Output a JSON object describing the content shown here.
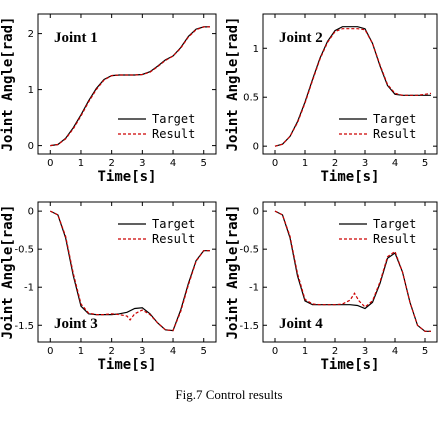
{
  "caption": "Fig.7 Control results",
  "chart_data": [
    {
      "type": "line",
      "title": "Joint 1",
      "xlabel": "Time[s]",
      "ylabel": "Joint Angle[rad]",
      "xlim": [
        -0.4,
        5.4
      ],
      "ylim": [
        -0.15,
        2.35
      ],
      "xticks": [
        0,
        1,
        2,
        3,
        4,
        5
      ],
      "yticks": [
        0,
        1,
        2
      ],
      "legend_position": "bottom-right",
      "series": [
        {
          "name": "Target",
          "color": "#000000",
          "style": "solid",
          "x": [
            0,
            0.25,
            0.5,
            0.75,
            1.0,
            1.25,
            1.5,
            1.75,
            2.0,
            2.25,
            2.5,
            2.75,
            3.0,
            3.25,
            3.5,
            3.75,
            4.0,
            4.25,
            4.5,
            4.75,
            5.0,
            5.2
          ],
          "y": [
            0,
            0.02,
            0.13,
            0.32,
            0.55,
            0.8,
            1.02,
            1.18,
            1.25,
            1.26,
            1.26,
            1.26,
            1.27,
            1.32,
            1.42,
            1.53,
            1.6,
            1.75,
            1.95,
            2.08,
            2.12,
            2.12
          ]
        },
        {
          "name": "Result",
          "color": "#cc0000",
          "style": "dashed",
          "x": [
            0,
            0.25,
            0.5,
            0.75,
            1.0,
            1.25,
            1.5,
            1.75,
            2.0,
            2.25,
            2.5,
            2.75,
            3.0,
            3.25,
            3.5,
            3.75,
            4.0,
            4.25,
            4.5,
            4.75,
            5.0,
            5.2
          ],
          "y": [
            0,
            0.02,
            0.12,
            0.3,
            0.53,
            0.78,
            1.0,
            1.17,
            1.25,
            1.26,
            1.26,
            1.26,
            1.27,
            1.31,
            1.41,
            1.52,
            1.6,
            1.74,
            1.94,
            2.07,
            2.12,
            2.12
          ]
        }
      ]
    },
    {
      "type": "line",
      "title": "Joint 2",
      "xlabel": "Time[s]",
      "ylabel": "Joint Angle[rad]",
      "xlim": [
        -0.4,
        5.4
      ],
      "ylim": [
        -0.08,
        1.35
      ],
      "xticks": [
        0,
        1,
        2,
        3,
        4,
        5
      ],
      "yticks": [
        0,
        0.5,
        1
      ],
      "legend_position": "bottom-right",
      "series": [
        {
          "name": "Target",
          "color": "#000000",
          "style": "solid",
          "x": [
            0,
            0.25,
            0.5,
            0.75,
            1.0,
            1.25,
            1.5,
            1.75,
            2.0,
            2.25,
            2.5,
            2.75,
            3.0,
            3.25,
            3.5,
            3.75,
            4.0,
            4.25,
            4.5,
            4.75,
            5.0,
            5.2
          ],
          "y": [
            0,
            0.02,
            0.1,
            0.25,
            0.45,
            0.68,
            0.9,
            1.07,
            1.18,
            1.22,
            1.22,
            1.22,
            1.2,
            1.05,
            0.82,
            0.62,
            0.53,
            0.52,
            0.52,
            0.52,
            0.52,
            0.52
          ]
        },
        {
          "name": "Result",
          "color": "#cc0000",
          "style": "dashed",
          "x": [
            0,
            0.25,
            0.5,
            0.75,
            1.0,
            1.25,
            1.5,
            1.75,
            2.0,
            2.25,
            2.5,
            2.75,
            3.0,
            3.25,
            3.5,
            3.75,
            4.0,
            4.25,
            4.5,
            4.75,
            5.0,
            5.2
          ],
          "y": [
            0,
            0.02,
            0.1,
            0.24,
            0.44,
            0.67,
            0.89,
            1.06,
            1.17,
            1.2,
            1.2,
            1.2,
            1.19,
            1.05,
            0.83,
            0.63,
            0.54,
            0.52,
            0.52,
            0.52,
            0.53,
            0.54
          ]
        }
      ]
    },
    {
      "type": "line",
      "title": "Joint 3",
      "xlabel": "Time[s]",
      "ylabel": "Joint Angle[rad]",
      "xlim": [
        -0.4,
        5.4
      ],
      "ylim": [
        -1.72,
        0.12
      ],
      "xticks": [
        0,
        1,
        2,
        3,
        4,
        5
      ],
      "yticks": [
        0,
        -0.5,
        -1,
        -1.5
      ],
      "legend_position": "top-right",
      "series": [
        {
          "name": "Target",
          "color": "#000000",
          "style": "solid",
          "x": [
            0,
            0.25,
            0.5,
            0.75,
            1.0,
            1.25,
            1.5,
            1.75,
            2.0,
            2.25,
            2.5,
            2.75,
            3.0,
            3.25,
            3.5,
            3.75,
            4.0,
            4.25,
            4.5,
            4.75,
            5.0,
            5.2
          ],
          "y": [
            0,
            -0.05,
            -0.35,
            -0.85,
            -1.25,
            -1.35,
            -1.36,
            -1.36,
            -1.36,
            -1.35,
            -1.33,
            -1.28,
            -1.27,
            -1.35,
            -1.47,
            -1.56,
            -1.57,
            -1.3,
            -0.95,
            -0.65,
            -0.52,
            -0.52
          ]
        },
        {
          "name": "Result",
          "color": "#cc0000",
          "style": "dashed",
          "x": [
            0,
            0.25,
            0.5,
            0.75,
            1.0,
            1.25,
            1.5,
            1.75,
            2.0,
            2.25,
            2.5,
            2.6,
            2.75,
            3.0,
            3.25,
            3.5,
            3.75,
            4.0,
            4.25,
            4.5,
            4.75,
            5.0,
            5.2
          ],
          "y": [
            0,
            -0.05,
            -0.33,
            -0.82,
            -1.22,
            -1.34,
            -1.36,
            -1.36,
            -1.35,
            -1.36,
            -1.38,
            -1.43,
            -1.35,
            -1.3,
            -1.36,
            -1.47,
            -1.56,
            -1.57,
            -1.32,
            -0.97,
            -0.66,
            -0.52,
            -0.52
          ]
        }
      ]
    },
    {
      "type": "line",
      "title": "Joint 4",
      "xlabel": "Time[s]",
      "ylabel": "Joint Angle[rad]",
      "xlim": [
        -0.4,
        5.4
      ],
      "ylim": [
        -1.72,
        0.12
      ],
      "xticks": [
        0,
        1,
        2,
        3,
        4,
        5
      ],
      "yticks": [
        0,
        -0.5,
        -1,
        -1.5
      ],
      "legend_position": "top-right",
      "series": [
        {
          "name": "Target",
          "color": "#000000",
          "style": "solid",
          "x": [
            0,
            0.25,
            0.5,
            0.75,
            1.0,
            1.25,
            1.5,
            1.75,
            2.0,
            2.25,
            2.5,
            2.75,
            3.0,
            3.25,
            3.5,
            3.75,
            4.0,
            4.25,
            4.5,
            4.75,
            5.0,
            5.2
          ],
          "y": [
            0,
            -0.05,
            -0.35,
            -0.85,
            -1.18,
            -1.23,
            -1.23,
            -1.23,
            -1.23,
            -1.23,
            -1.23,
            -1.24,
            -1.28,
            -1.2,
            -0.95,
            -0.62,
            -0.55,
            -0.8,
            -1.2,
            -1.5,
            -1.58,
            -1.58
          ]
        },
        {
          "name": "Result",
          "color": "#cc0000",
          "style": "dashed",
          "x": [
            0,
            0.25,
            0.5,
            0.75,
            1.0,
            1.25,
            1.5,
            1.75,
            2.0,
            2.25,
            2.5,
            2.65,
            2.8,
            3.0,
            3.25,
            3.5,
            3.75,
            4.0,
            4.25,
            4.5,
            4.75,
            5.0,
            5.2
          ],
          "y": [
            0,
            -0.05,
            -0.33,
            -0.82,
            -1.16,
            -1.22,
            -1.23,
            -1.23,
            -1.23,
            -1.22,
            -1.17,
            -1.08,
            -1.18,
            -1.26,
            -1.18,
            -0.93,
            -0.6,
            -0.53,
            -0.8,
            -1.2,
            -1.5,
            -1.58,
            -1.58
          ]
        }
      ]
    }
  ]
}
